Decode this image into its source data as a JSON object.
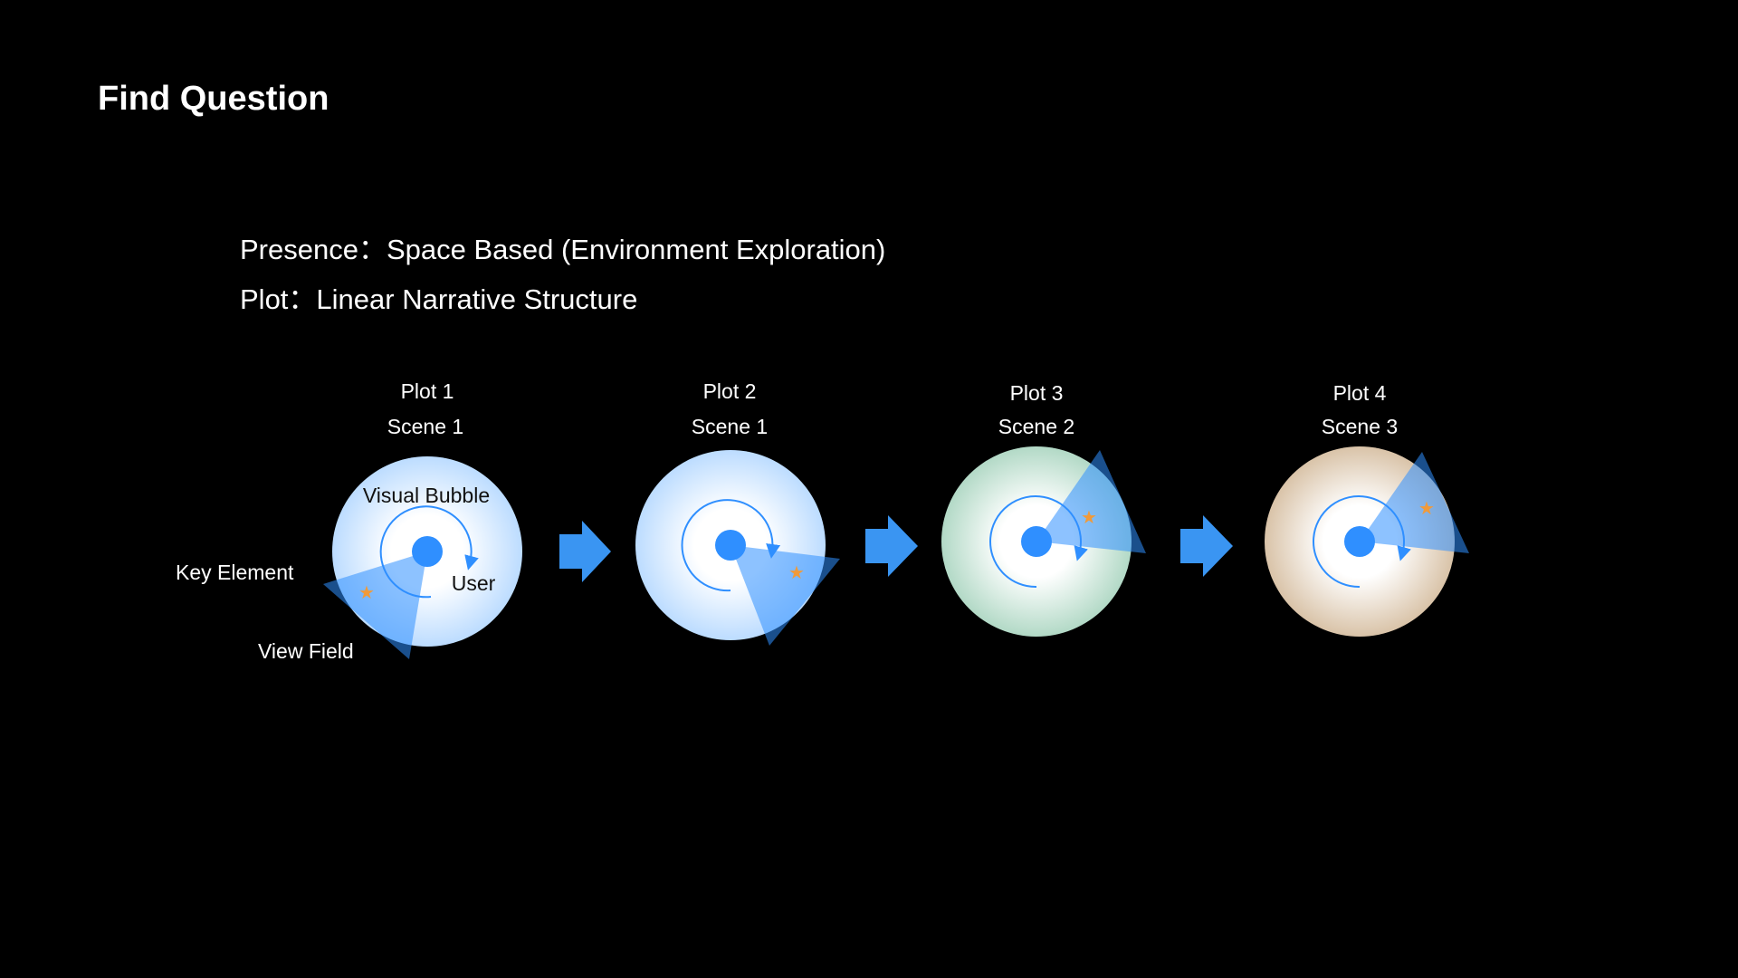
{
  "title": "Find Question",
  "presence_line": "Presence：Space Based (Environment Exploration)",
  "plot_line": "Plot：Linear Narrative Structure",
  "annotations": {
    "visual_bubble": "Visual Bubble",
    "user": "User",
    "key_element": "Key Element",
    "view_field": "View Field"
  },
  "stages": [
    {
      "plot": "Plot 1",
      "scene": "Scene 1",
      "tint": "#bcdcff"
    },
    {
      "plot": "Plot 2",
      "scene": "Scene 1",
      "tint": "#bcdcff"
    },
    {
      "plot": "Plot 3",
      "scene": "Scene 2",
      "tint": "#b2d9c6"
    },
    {
      "plot": "Plot 4",
      "scene": "Scene 3",
      "tint": "#d9c3a8"
    }
  ],
  "colors": {
    "user_dot": "#2f8fff",
    "view_field": "#2f8fff",
    "star": "#f09a3a",
    "arrow": "#3a95f2"
  }
}
